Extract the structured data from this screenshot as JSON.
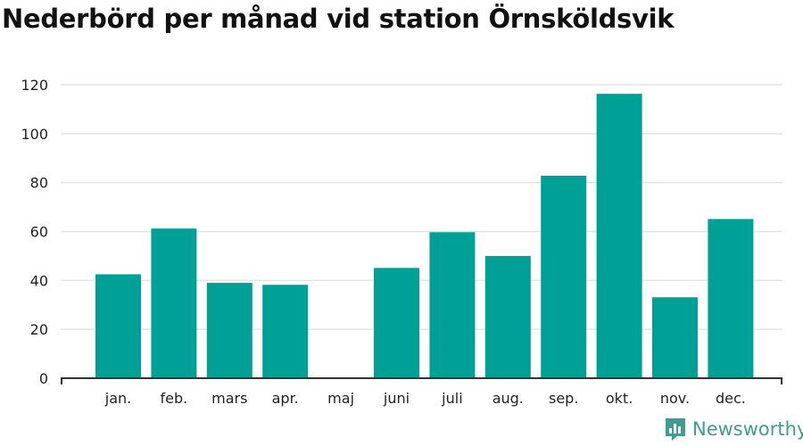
{
  "colors": {
    "bar": "#00a096",
    "grid": "#e4e4e4",
    "axis": "#333333",
    "brand": "#3f9c92"
  },
  "brand": {
    "name": "Newsworthy",
    "icon": "bar-chart-logo-icon"
  },
  "chart_data": {
    "type": "bar",
    "title": "Nederbörd per månad vid station Örnsköldsvik",
    "xlabel": "",
    "ylabel": "",
    "ylim": [
      0,
      120
    ],
    "yticks": [
      0,
      20,
      40,
      60,
      80,
      100,
      120
    ],
    "grid": true,
    "categories": [
      "jan.",
      "feb.",
      "mars",
      "apr.",
      "maj",
      "juni",
      "juli",
      "aug.",
      "sep.",
      "okt.",
      "nov.",
      "dec."
    ],
    "values": [
      42.5,
      61.2,
      39.0,
      38.2,
      null,
      45.1,
      59.7,
      50.0,
      82.8,
      116.3,
      33.1,
      65.1
    ]
  }
}
